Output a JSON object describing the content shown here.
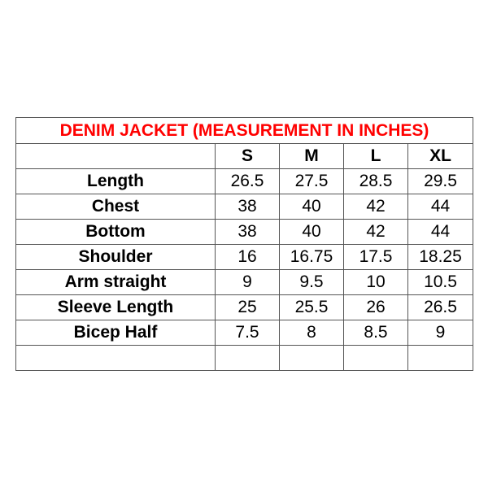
{
  "title": "DENIM JACKET (MEASUREMENT IN INCHES)",
  "title_color": "#ff0000",
  "sizes": [
    "S",
    "M",
    "L",
    "XL"
  ],
  "rows": [
    {
      "label": "Length",
      "values": [
        "26.5",
        "27.5",
        "28.5",
        "29.5"
      ]
    },
    {
      "label": "Chest",
      "values": [
        "38",
        "40",
        "42",
        "44"
      ]
    },
    {
      "label": "Bottom",
      "values": [
        "38",
        "40",
        "42",
        "44"
      ]
    },
    {
      "label": "Shoulder",
      "values": [
        "16",
        "16.75",
        "17.5",
        "18.25"
      ]
    },
    {
      "label": "Arm straight",
      "values": [
        "9",
        "9.5",
        "10",
        "10.5"
      ]
    },
    {
      "label": "Sleeve Length",
      "values": [
        "25",
        "25.5",
        "26",
        "26.5"
      ]
    },
    {
      "label": "Bicep Half",
      "values": [
        "7.5",
        "8",
        "8.5",
        "9"
      ]
    }
  ]
}
